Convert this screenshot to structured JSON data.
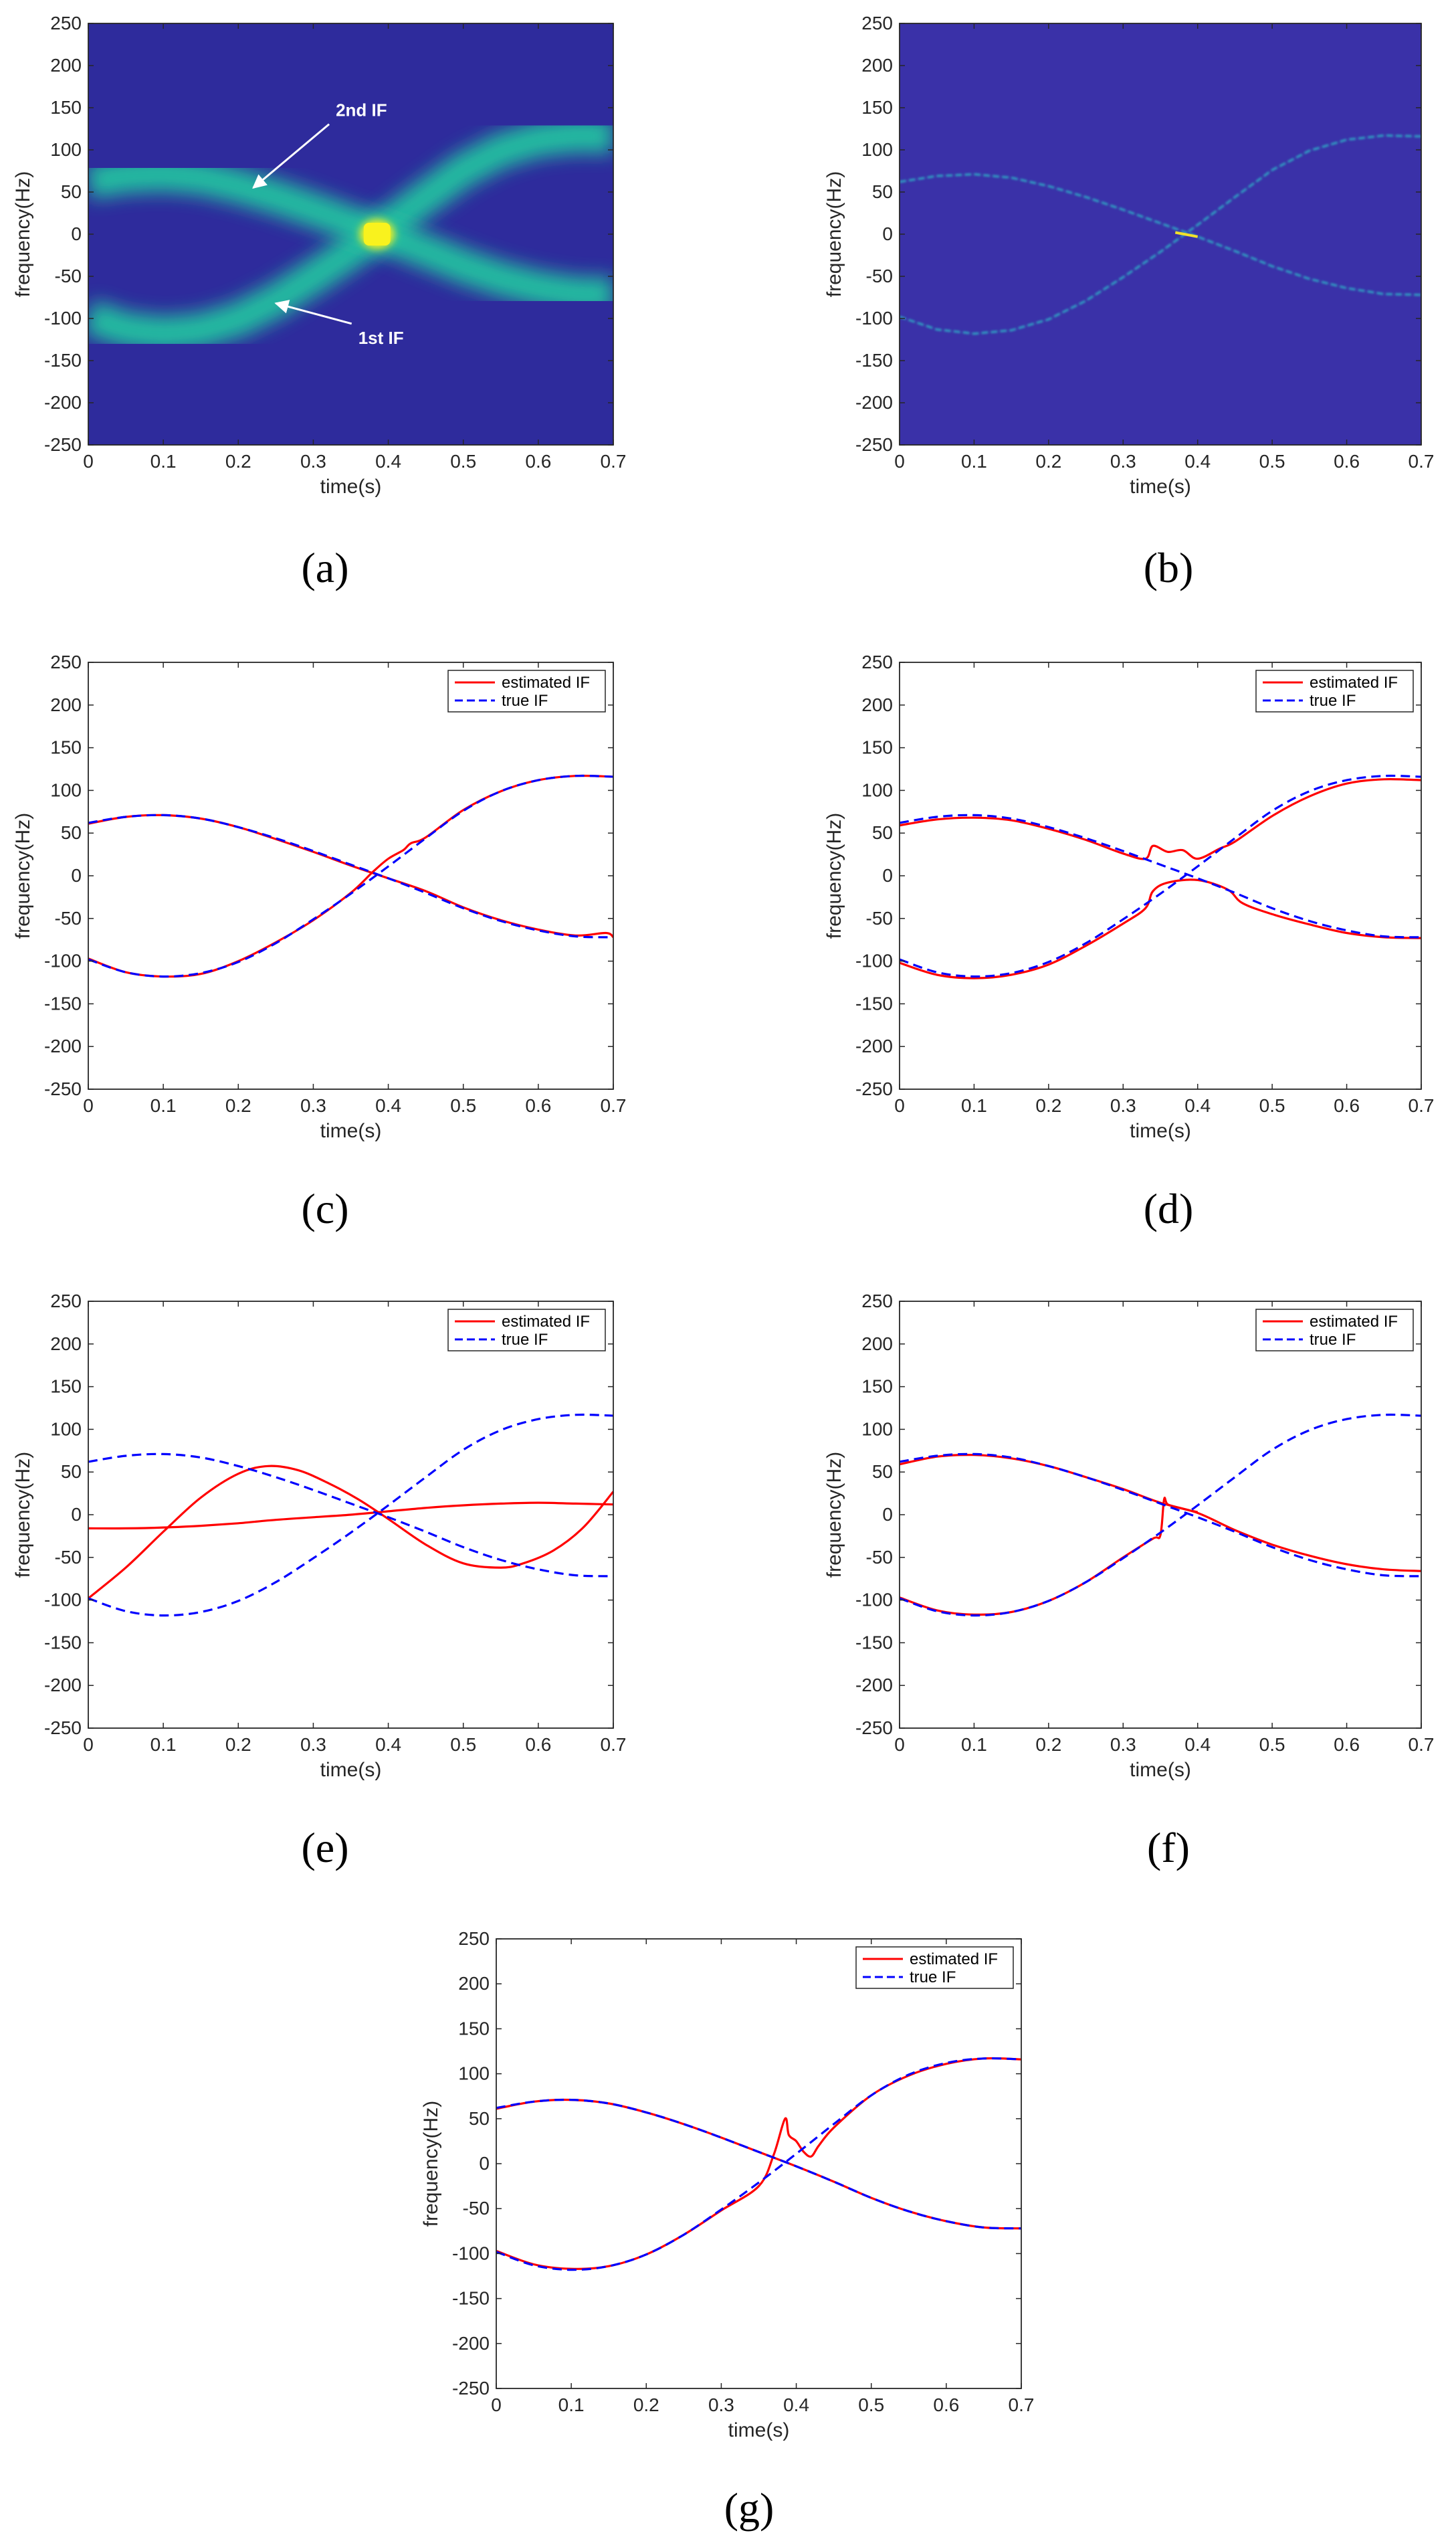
{
  "chart_data": [
    {
      "id": "a",
      "type": "heatmap",
      "caption": "(a)",
      "xlabel": "time(s)",
      "ylabel": "frequency(Hz)",
      "xlim": [
        0,
        0.7
      ],
      "ylim": [
        -250,
        250
      ],
      "xticks": [
        "0",
        "0.1",
        "0.2",
        "0.3",
        "0.4",
        "0.5",
        "0.6",
        "0.7"
      ],
      "yticks": [
        "250",
        "200",
        "150",
        "100",
        "50",
        "0",
        "-50",
        "-100",
        "-150",
        "-200",
        "-250"
      ],
      "annotations": [
        {
          "text": "2nd IF",
          "x": 0.33,
          "y": 140,
          "arrow_to": [
            0.22,
            55
          ]
        },
        {
          "text": "1st IF",
          "x": 0.36,
          "y": -130,
          "arrow_to": [
            0.25,
            -82
          ]
        }
      ],
      "colors": {
        "background": "#2e2b9c",
        "ridge": "#23c3a0",
        "peak": "#f9f21e"
      }
    },
    {
      "id": "b",
      "type": "heatmap",
      "caption": "(b)",
      "xlabel": "time(s)",
      "ylabel": "frequency(Hz)",
      "xlim": [
        0,
        0.7
      ],
      "ylim": [
        -250,
        250
      ],
      "xticks": [
        "0",
        "0.1",
        "0.2",
        "0.3",
        "0.4",
        "0.5",
        "0.6",
        "0.7"
      ],
      "yticks": [
        "250",
        "200",
        "150",
        "100",
        "50",
        "0",
        "-50",
        "-100",
        "-150",
        "-200",
        "-250"
      ],
      "colors": {
        "background": "#3a31a8",
        "ridge": "#2fb7c8",
        "peak": "#f2e22a"
      }
    },
    {
      "id": "c",
      "type": "line",
      "caption": "(c)",
      "xlabel": "time(s)",
      "ylabel": "frequency(Hz)",
      "xlim": [
        0,
        0.7
      ],
      "ylim": [
        -250,
        250
      ],
      "xticks": [
        "0",
        "0.1",
        "0.2",
        "0.3",
        "0.4",
        "0.5",
        "0.6",
        "0.7"
      ],
      "yticks": [
        "250",
        "200",
        "150",
        "100",
        "50",
        "0",
        "-50",
        "-100",
        "-150",
        "-200",
        "-250"
      ],
      "legend": {
        "position": "top-right",
        "entries": [
          "estimated IF",
          "true IF"
        ]
      },
      "series": [
        {
          "name": "estimated IF",
          "color": "#ff0000",
          "style": "solid",
          "x": [
            0,
            0.05,
            0.1,
            0.15,
            0.2,
            0.25,
            0.3,
            0.35,
            0.38,
            0.4,
            0.42,
            0.43,
            0.45,
            0.5,
            0.55,
            0.6,
            0.65,
            0.7
          ],
          "y": [
            -97,
            -113,
            -118,
            -115,
            -100,
            -78,
            -52,
            -20,
            5,
            20,
            30,
            38,
            45,
            77,
            99,
            112,
            117,
            116
          ]
        },
        {
          "name": "",
          "color": "#ff0000",
          "style": "solid",
          "x": [
            0,
            0.05,
            0.1,
            0.15,
            0.2,
            0.25,
            0.3,
            0.35,
            0.4,
            0.45,
            0.5,
            0.55,
            0.6,
            0.65,
            0.69,
            0.7
          ],
          "y": [
            61,
            69,
            71,
            67,
            57,
            43,
            28,
            12,
            -3,
            -18,
            -37,
            -52,
            -63,
            -70,
            -67,
            -72
          ]
        },
        {
          "name": "true IF",
          "color": "#0000ff",
          "style": "dashed",
          "x": [
            0,
            0.05,
            0.1,
            0.15,
            0.2,
            0.25,
            0.3,
            0.35,
            0.4,
            0.45,
            0.5,
            0.55,
            0.6,
            0.65,
            0.7
          ],
          "y": [
            -98,
            -113,
            -118,
            -114,
            -101,
            -79,
            -51,
            -21,
            11,
            44,
            76,
            99,
            112,
            117,
            116
          ]
        },
        {
          "name": "",
          "color": "#0000ff",
          "style": "dashed",
          "x": [
            0,
            0.05,
            0.1,
            0.15,
            0.2,
            0.25,
            0.3,
            0.35,
            0.4,
            0.45,
            0.5,
            0.55,
            0.6,
            0.65,
            0.7
          ],
          "y": [
            62,
            69,
            71,
            67,
            57,
            44,
            29,
            13,
            -3,
            -20,
            -38,
            -53,
            -64,
            -71,
            -72
          ]
        }
      ]
    },
    {
      "id": "d",
      "type": "line",
      "caption": "(d)",
      "xlabel": "time(s)",
      "ylabel": "frequency(Hz)",
      "xlim": [
        0,
        0.7
      ],
      "ylim": [
        -250,
        250
      ],
      "xticks": [
        "0",
        "0.1",
        "0.2",
        "0.3",
        "0.4",
        "0.5",
        "0.6",
        "0.7"
      ],
      "yticks": [
        "250",
        "200",
        "150",
        "100",
        "50",
        "0",
        "-50",
        "-100",
        "-150",
        "-200",
        "-250"
      ],
      "legend": {
        "position": "top-right",
        "entries": [
          "estimated IF",
          "true IF"
        ]
      },
      "series": [
        {
          "name": "estimated IF",
          "color": "#ff0000",
          "style": "solid",
          "x": [
            0,
            0.05,
            0.1,
            0.15,
            0.2,
            0.25,
            0.3,
            0.33,
            0.34,
            0.36,
            0.38,
            0.4,
            0.43,
            0.45,
            0.5,
            0.55,
            0.6,
            0.65,
            0.7
          ],
          "y": [
            59,
            66,
            68,
            65,
            55,
            42,
            26,
            20,
            35,
            28,
            30,
            20,
            32,
            40,
            70,
            93,
            108,
            113,
            112
          ]
        },
        {
          "name": "",
          "color": "#ff0000",
          "style": "solid",
          "x": [
            0,
            0.05,
            0.1,
            0.15,
            0.2,
            0.25,
            0.3,
            0.33,
            0.34,
            0.36,
            0.4,
            0.44,
            0.46,
            0.5,
            0.55,
            0.6,
            0.65,
            0.7
          ],
          "y": [
            -102,
            -116,
            -120,
            -116,
            -104,
            -82,
            -56,
            -38,
            -18,
            -8,
            -5,
            -16,
            -32,
            -45,
            -57,
            -67,
            -72,
            -73
          ]
        },
        {
          "name": "true IF",
          "color": "#0000ff",
          "style": "dashed",
          "x": [
            0,
            0.05,
            0.1,
            0.15,
            0.2,
            0.25,
            0.3,
            0.35,
            0.4,
            0.45,
            0.5,
            0.55,
            0.6,
            0.65,
            0.7
          ],
          "y": [
            -98,
            -113,
            -118,
            -114,
            -101,
            -79,
            -51,
            -21,
            11,
            44,
            76,
            99,
            112,
            117,
            116
          ]
        },
        {
          "name": "",
          "color": "#0000ff",
          "style": "dashed",
          "x": [
            0,
            0.05,
            0.1,
            0.15,
            0.2,
            0.25,
            0.3,
            0.35,
            0.4,
            0.45,
            0.5,
            0.55,
            0.6,
            0.65,
            0.7
          ],
          "y": [
            62,
            69,
            71,
            67,
            57,
            44,
            29,
            13,
            -3,
            -20,
            -38,
            -53,
            -64,
            -71,
            -72
          ]
        }
      ]
    },
    {
      "id": "e",
      "type": "line",
      "caption": "(e)",
      "xlabel": "time(s)",
      "ylabel": "frequency(Hz)",
      "xlim": [
        0,
        0.7
      ],
      "ylim": [
        -250,
        250
      ],
      "xticks": [
        "0",
        "0.1",
        "0.2",
        "0.3",
        "0.4",
        "0.5",
        "0.6",
        "0.7"
      ],
      "yticks": [
        "250",
        "200",
        "150",
        "100",
        "50",
        "0",
        "-50",
        "-100",
        "-150",
        "-200",
        "-250"
      ],
      "legend": {
        "position": "top-right",
        "entries": [
          "estimated IF",
          "true IF"
        ]
      },
      "series": [
        {
          "name": "estimated IF",
          "color": "#ff0000",
          "style": "solid",
          "x": [
            0,
            0.05,
            0.1,
            0.15,
            0.2,
            0.24,
            0.28,
            0.32,
            0.36,
            0.4,
            0.45,
            0.5,
            0.55,
            0.58,
            0.62,
            0.66,
            0.7
          ],
          "y": [
            -98,
            -62,
            -20,
            20,
            48,
            57,
            52,
            37,
            18,
            -5,
            -35,
            -57,
            -62,
            -57,
            -42,
            -15,
            27
          ]
        },
        {
          "name": "",
          "color": "#ff0000",
          "style": "solid",
          "x": [
            0,
            0.05,
            0.1,
            0.15,
            0.2,
            0.25,
            0.3,
            0.35,
            0.4,
            0.45,
            0.5,
            0.55,
            0.6,
            0.65,
            0.7
          ],
          "y": [
            -16,
            -16,
            -15,
            -13,
            -10,
            -6,
            -3,
            0,
            4,
            8,
            11,
            13,
            14,
            13,
            12
          ]
        },
        {
          "name": "true IF",
          "color": "#0000ff",
          "style": "dashed",
          "x": [
            0,
            0.05,
            0.1,
            0.15,
            0.2,
            0.25,
            0.3,
            0.35,
            0.4,
            0.45,
            0.5,
            0.55,
            0.6,
            0.65,
            0.7
          ],
          "y": [
            -98,
            -113,
            -118,
            -114,
            -101,
            -79,
            -51,
            -21,
            11,
            44,
            76,
            99,
            112,
            117,
            116
          ]
        },
        {
          "name": "",
          "color": "#0000ff",
          "style": "dashed",
          "x": [
            0,
            0.05,
            0.1,
            0.15,
            0.2,
            0.25,
            0.3,
            0.35,
            0.4,
            0.45,
            0.5,
            0.55,
            0.6,
            0.65,
            0.7
          ],
          "y": [
            62,
            69,
            71,
            67,
            57,
            44,
            29,
            13,
            -3,
            -20,
            -38,
            -53,
            -64,
            -71,
            -72
          ]
        }
      ]
    },
    {
      "id": "f",
      "type": "line",
      "caption": "(f)",
      "xlabel": "time(s)",
      "ylabel": "frequency(Hz)",
      "xlim": [
        0,
        0.7
      ],
      "ylim": [
        -250,
        250
      ],
      "xticks": [
        "0",
        "0.1",
        "0.2",
        "0.3",
        "0.4",
        "0.5",
        "0.6",
        "0.7"
      ],
      "yticks": [
        "250",
        "200",
        "150",
        "100",
        "50",
        "0",
        "-50",
        "-100",
        "-150",
        "-200",
        "-250"
      ],
      "legend": {
        "position": "top-right",
        "entries": [
          "estimated IF",
          "true IF"
        ]
      },
      "series": [
        {
          "name": "estimated IF",
          "color": "#ff0000",
          "style": "solid",
          "x": [
            0,
            0.05,
            0.1,
            0.15,
            0.2,
            0.25,
            0.3,
            0.35,
            0.4,
            0.45,
            0.5,
            0.55,
            0.6,
            0.65,
            0.7
          ],
          "y": [
            59,
            68,
            70,
            66,
            57,
            44,
            30,
            14,
            2,
            -18,
            -35,
            -48,
            -58,
            -64,
            -66
          ]
        },
        {
          "name": "",
          "color": "#ff0000",
          "style": "solid",
          "x": [
            0,
            0.05,
            0.1,
            0.15,
            0.2,
            0.25,
            0.3,
            0.34,
            0.35,
            0.355,
            0.36,
            0.38,
            0.4
          ],
          "y": [
            -97,
            -112,
            -117,
            -114,
            -101,
            -79,
            -50,
            -28,
            -24,
            18,
            12,
            7,
            3
          ]
        },
        {
          "name": "true IF",
          "color": "#0000ff",
          "style": "dashed",
          "x": [
            0,
            0.05,
            0.1,
            0.15,
            0.2,
            0.25,
            0.3,
            0.35,
            0.4,
            0.45,
            0.5,
            0.55,
            0.6,
            0.65,
            0.7
          ],
          "y": [
            -98,
            -113,
            -118,
            -114,
            -101,
            -79,
            -51,
            -21,
            11,
            44,
            76,
            99,
            112,
            117,
            116
          ]
        },
        {
          "name": "",
          "color": "#0000ff",
          "style": "dashed",
          "x": [
            0,
            0.05,
            0.1,
            0.15,
            0.2,
            0.25,
            0.3,
            0.35,
            0.4,
            0.45,
            0.5,
            0.55,
            0.6,
            0.65,
            0.7
          ],
          "y": [
            62,
            69,
            71,
            67,
            57,
            44,
            29,
            13,
            -3,
            -20,
            -38,
            -53,
            -64,
            -71,
            -72
          ]
        }
      ]
    },
    {
      "id": "g",
      "type": "line",
      "caption": "(g)",
      "xlabel": "time(s)",
      "ylabel": "frequency(Hz)",
      "xlim": [
        0,
        0.7
      ],
      "ylim": [
        -250,
        250
      ],
      "xticks": [
        "0",
        "0.1",
        "0.2",
        "0.3",
        "0.4",
        "0.5",
        "0.6",
        "0.7"
      ],
      "yticks": [
        "250",
        "200",
        "150",
        "100",
        "50",
        "0",
        "-50",
        "-100",
        "-150",
        "-200",
        "-250"
      ],
      "legend": {
        "position": "top-right",
        "entries": [
          "estimated IF",
          "true IF"
        ]
      },
      "series": [
        {
          "name": "estimated IF",
          "color": "#ff0000",
          "style": "solid",
          "x": [
            0,
            0.05,
            0.1,
            0.15,
            0.2,
            0.25,
            0.3,
            0.35,
            0.37,
            0.385,
            0.39,
            0.4,
            0.41,
            0.42,
            0.43,
            0.45,
            0.5,
            0.55,
            0.6,
            0.65,
            0.7
          ],
          "y": [
            -97,
            -112,
            -117,
            -114,
            -101,
            -79,
            -52,
            -25,
            10,
            50,
            32,
            25,
            13,
            8,
            20,
            40,
            76,
            98,
            111,
            117,
            116
          ]
        },
        {
          "name": "",
          "color": "#ff0000",
          "style": "solid",
          "x": [
            0,
            0.05,
            0.1,
            0.15,
            0.2,
            0.25,
            0.3,
            0.35,
            0.4,
            0.45,
            0.5,
            0.55,
            0.6,
            0.65,
            0.7
          ],
          "y": [
            61,
            69,
            71,
            67,
            57,
            44,
            29,
            13,
            -3,
            -20,
            -38,
            -53,
            -64,
            -71,
            -72
          ]
        },
        {
          "name": "true IF",
          "color": "#0000ff",
          "style": "dashed",
          "x": [
            0,
            0.05,
            0.1,
            0.15,
            0.2,
            0.25,
            0.3,
            0.35,
            0.4,
            0.45,
            0.5,
            0.55,
            0.6,
            0.65,
            0.7
          ],
          "y": [
            -98,
            -113,
            -118,
            -114,
            -101,
            -79,
            -51,
            -21,
            11,
            44,
            76,
            99,
            112,
            117,
            116
          ]
        },
        {
          "name": "",
          "color": "#0000ff",
          "style": "dashed",
          "x": [
            0,
            0.05,
            0.1,
            0.15,
            0.2,
            0.25,
            0.3,
            0.35,
            0.4,
            0.45,
            0.5,
            0.55,
            0.6,
            0.65,
            0.7
          ],
          "y": [
            62,
            69,
            71,
            67,
            57,
            44,
            29,
            13,
            -3,
            -20,
            -38,
            -53,
            -64,
            -71,
            -72
          ]
        }
      ]
    }
  ]
}
